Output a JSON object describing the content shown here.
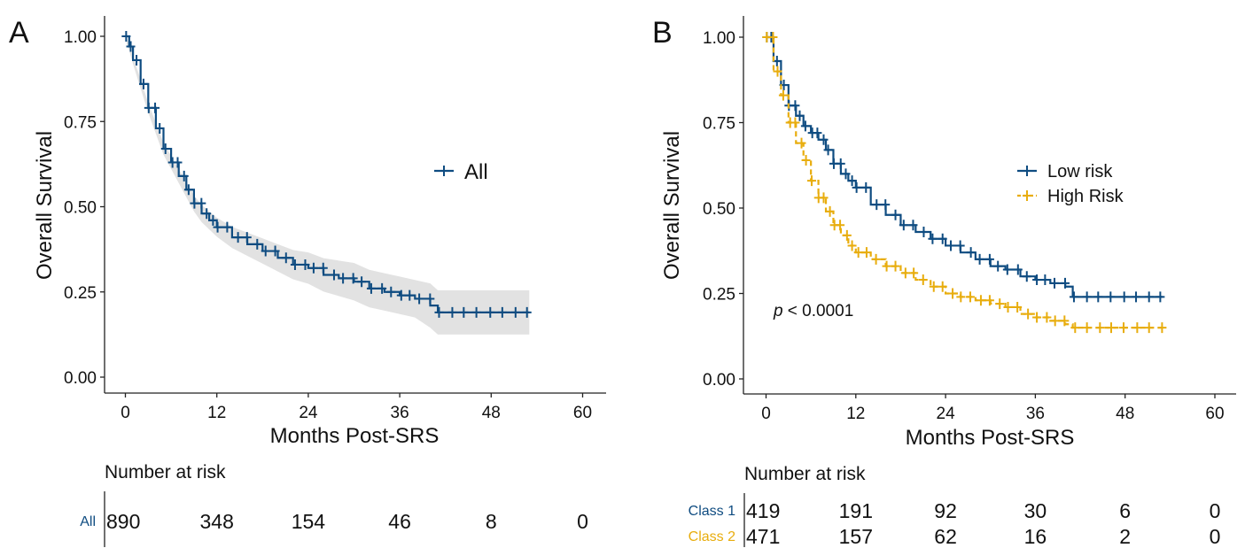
{
  "chart_data": [
    {
      "type": "line",
      "panel_label": "A",
      "xlabel": "Months Post-SRS",
      "ylabel": "Overall Survival",
      "xlim": [
        0,
        60
      ],
      "ylim": [
        0,
        1
      ],
      "x_ticks": [
        "0",
        "12",
        "24",
        "36",
        "48",
        "60"
      ],
      "y_ticks": [
        "0.00",
        "0.25",
        "0.50",
        "0.75",
        "1.00"
      ],
      "grid": false,
      "legend_position": "right-center",
      "series": [
        {
          "name": "All",
          "color": "#0f4c81",
          "confidence_band": true,
          "x": [
            0,
            0.5,
            1,
            2,
            3,
            4,
            5,
            6,
            7,
            8,
            9,
            10,
            11,
            12,
            14,
            16,
            18,
            20,
            22,
            24,
            26,
            28,
            30,
            32,
            34,
            36,
            38,
            40,
            41,
            53
          ],
          "y": [
            1.0,
            0.97,
            0.93,
            0.86,
            0.79,
            0.73,
            0.67,
            0.63,
            0.59,
            0.55,
            0.51,
            0.48,
            0.46,
            0.44,
            0.41,
            0.39,
            0.37,
            0.35,
            0.33,
            0.32,
            0.3,
            0.29,
            0.28,
            0.26,
            0.25,
            0.24,
            0.23,
            0.21,
            0.19,
            0.19
          ]
        }
      ],
      "risk_table": {
        "title": "Number at risk",
        "rows": [
          {
            "label": "All",
            "color": "#0f4c81",
            "values": [
              "890",
              "348",
              "154",
              "46",
              "8",
              "0"
            ]
          }
        ]
      }
    },
    {
      "type": "line",
      "panel_label": "B",
      "xlabel": "Months Post-SRS",
      "ylabel": "Overall Survival",
      "xlim": [
        0,
        60
      ],
      "ylim": [
        0,
        1
      ],
      "x_ticks": [
        "0",
        "12",
        "24",
        "36",
        "48",
        "60"
      ],
      "y_ticks": [
        "0.00",
        "0.25",
        "0.50",
        "0.75",
        "1.00"
      ],
      "grid": false,
      "legend_position": "right-upper",
      "annotation": {
        "italic": "p",
        "rest": " < 0.0001",
        "x": 1,
        "y": 0.2
      },
      "series": [
        {
          "name": "Low risk",
          "color": "#0f4c81",
          "dashed": false,
          "x": [
            0,
            1,
            2,
            3,
            4,
            5,
            6,
            7,
            8,
            9,
            10,
            11,
            12,
            14,
            16,
            18,
            20,
            22,
            24,
            26,
            28,
            30,
            32,
            34,
            36,
            38,
            40,
            41,
            42,
            53
          ],
          "y": [
            1.0,
            0.93,
            0.86,
            0.8,
            0.77,
            0.74,
            0.72,
            0.7,
            0.67,
            0.63,
            0.6,
            0.58,
            0.56,
            0.51,
            0.48,
            0.45,
            0.43,
            0.41,
            0.39,
            0.37,
            0.35,
            0.33,
            0.32,
            0.3,
            0.29,
            0.28,
            0.27,
            0.24,
            0.24,
            0.24
          ]
        },
        {
          "name": "High Risk",
          "color": "#e8ad0e",
          "dashed": true,
          "x": [
            0,
            1,
            2,
            3,
            4,
            5,
            6,
            7,
            8,
            9,
            10,
            11,
            12,
            14,
            16,
            18,
            20,
            22,
            24,
            26,
            28,
            30,
            32,
            34,
            36,
            38,
            40,
            41,
            42,
            53
          ],
          "y": [
            1.0,
            0.9,
            0.83,
            0.75,
            0.69,
            0.64,
            0.58,
            0.53,
            0.49,
            0.45,
            0.42,
            0.39,
            0.37,
            0.35,
            0.33,
            0.31,
            0.29,
            0.27,
            0.25,
            0.24,
            0.23,
            0.22,
            0.21,
            0.19,
            0.18,
            0.17,
            0.16,
            0.15,
            0.15,
            0.15
          ]
        }
      ],
      "risk_table": {
        "title": "Number at risk",
        "rows": [
          {
            "label": "Class 1",
            "color": "#0f4c81",
            "values": [
              "419",
              "191",
              "92",
              "30",
              "6",
              "0"
            ]
          },
          {
            "label": "Class 2",
            "color": "#e8ad0e",
            "values": [
              "471",
              "157",
              "62",
              "16",
              "2",
              "0"
            ]
          }
        ]
      }
    }
  ]
}
